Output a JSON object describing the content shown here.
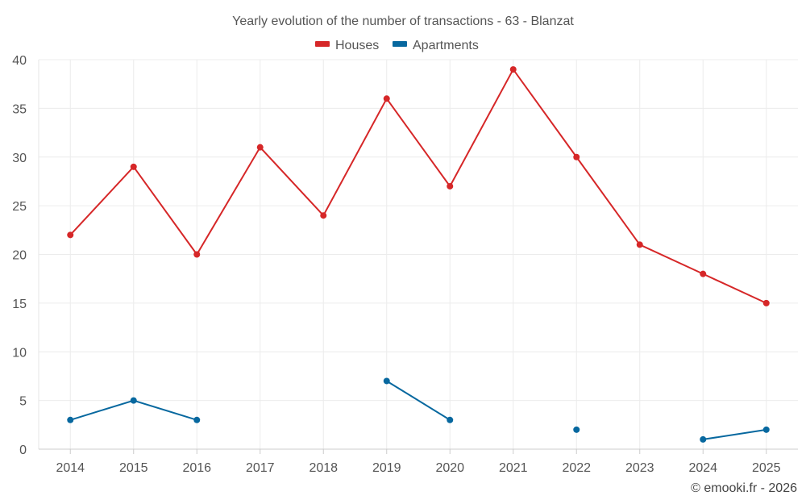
{
  "chart_data": {
    "type": "line",
    "title": "Yearly evolution of the number of transactions - 63 - Blanzat",
    "categories": [
      "2014",
      "2015",
      "2016",
      "2017",
      "2018",
      "2019",
      "2020",
      "2021",
      "2022",
      "2023",
      "2024",
      "2025"
    ],
    "series": [
      {
        "name": "Houses",
        "color": "#d62728",
        "values": [
          22,
          29,
          20,
          31,
          24,
          36,
          27,
          39,
          30,
          21,
          18,
          15
        ]
      },
      {
        "name": "Apartments",
        "color": "#07689f",
        "values": [
          3,
          5,
          3,
          null,
          null,
          7,
          3,
          null,
          2,
          null,
          1,
          2
        ]
      }
    ],
    "ylim": [
      0,
      40
    ],
    "yticks": [
      0,
      5,
      10,
      15,
      20,
      25,
      30,
      35,
      40
    ],
    "xlabel": "",
    "ylabel": "",
    "grid": true,
    "legend_position": "top-center"
  },
  "credit": "© emooki.fr - 2026"
}
